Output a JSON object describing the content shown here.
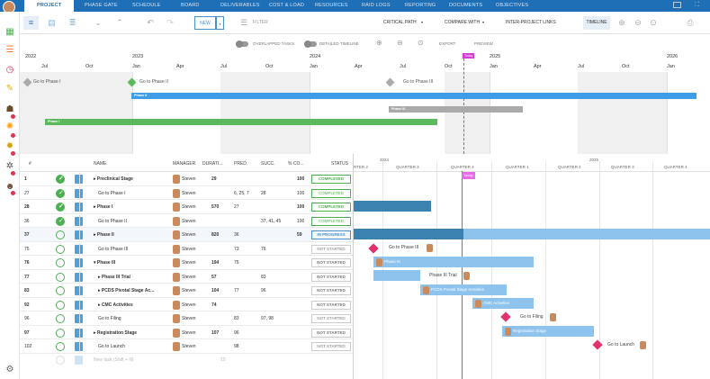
{
  "nav": {
    "tabs": [
      "PROJECT",
      "PHASE GATE",
      "SCHEDULE",
      "BOARD",
      "DELIVERABLES",
      "COST & LOAD",
      "RESOURCES",
      "RAID LOGS",
      "REPORTING",
      "DOCUMENTS",
      "OBJECTIVES"
    ],
    "active_tab": "PROJECT"
  },
  "toolbar": {
    "new_label": "NEW",
    "filter_label": "FILTER",
    "critical_path_label": "CRITICAL PATH",
    "compare_label": "COMPARE WITH",
    "inter_project_label": "INTER-PROJECT LINKS",
    "timeline_label": "TIMELINE"
  },
  "timeline_controls": {
    "overlapped": "OVERLAPPED TASKS",
    "detailed": "DETAILED TIMELINE",
    "export": "EXPORT",
    "preview": "PREVIEW"
  },
  "timeline": {
    "years": [
      "2022",
      "2023",
      "2024",
      "2025",
      "2026"
    ],
    "months": [
      "Jul",
      "Oct",
      "Jan",
      "Apr",
      "Jul",
      "Oct",
      "Jan",
      "Apr",
      "Jul",
      "Oct",
      "Jan",
      "Apr",
      "Jul",
      "Oct",
      "Jan"
    ],
    "today_label": "Today",
    "milestones": [
      "Go to Phase I",
      "Go to Phase II",
      "Go to Phase III"
    ],
    "bars": [
      "Phase II",
      "Phase III",
      "Phase I"
    ]
  },
  "table": {
    "headers": {
      "num": "#",
      "name": "NAME",
      "manager": "MANAGER",
      "duration": "DURATI...",
      "pred": "PRED.",
      "succ": "SUCC.",
      "complete": "% CO...",
      "status": "STATUS"
    },
    "rows": [
      {
        "num": "1",
        "name": "Preclinical Stage",
        "manager": "Steven",
        "duration": "29",
        "pred": "",
        "succ": "",
        "pct": "100",
        "status": "COMPLETED"
      },
      {
        "num": "27",
        "name": "Go to Phase I",
        "manager": "Steven",
        "duration": "",
        "pred": "6, 25, 7",
        "succ": "28",
        "pct": "100",
        "status": "COMPLETED"
      },
      {
        "num": "28",
        "name": "Phase I",
        "manager": "Steven",
        "duration": "570",
        "pred": "27",
        "succ": "",
        "pct": "100",
        "status": "COMPLETED"
      },
      {
        "num": "36",
        "name": "Go to Phase II",
        "manager": "Steven",
        "duration": "",
        "pred": "",
        "succ": "37, 41, 45",
        "pct": "100",
        "status": "COMPLETED"
      },
      {
        "num": "37",
        "name": "Phase II",
        "manager": "Steven",
        "duration": "820",
        "pred": "36",
        "succ": "",
        "pct": "59",
        "status": "IN PROGRESS"
      },
      {
        "num": "75",
        "name": "Go to Phase III",
        "manager": "Steven",
        "duration": "",
        "pred": "73",
        "succ": "76",
        "pct": "",
        "status": "NOT STARTED"
      },
      {
        "num": "76",
        "name": "Phase III",
        "manager": "Steven",
        "duration": "194",
        "pred": "75",
        "succ": "",
        "pct": "",
        "status": "NOT STARTED"
      },
      {
        "num": "77",
        "name": "Phase III Trial",
        "manager": "Steven",
        "duration": "57",
        "pred": "",
        "succ": "83",
        "pct": "",
        "status": "NOT STARTED"
      },
      {
        "num": "83",
        "name": "PCDS Pivotal Stage Ac...",
        "manager": "Steven",
        "duration": "104",
        "pred": "77",
        "succ": "96",
        "pct": "",
        "status": "NOT STARTED"
      },
      {
        "num": "92",
        "name": "CMC Activities",
        "manager": "Steven",
        "duration": "74",
        "pred": "",
        "succ": "",
        "pct": "",
        "status": "NOT STARTED"
      },
      {
        "num": "96",
        "name": "Go to Filing",
        "manager": "Steven",
        "duration": "",
        "pred": "83",
        "succ": "97, 98",
        "pct": "",
        "status": "NOT STARTED"
      },
      {
        "num": "97",
        "name": "Registration Stage",
        "manager": "Steven",
        "duration": "107",
        "pred": "96",
        "succ": "",
        "pct": "",
        "status": "NOT STARTED"
      },
      {
        "num": "102",
        "name": "Go to Launch",
        "manager": "Steven",
        "duration": "",
        "pred": "98",
        "succ": "",
        "pct": "",
        "status": "NOT STARTED"
      }
    ],
    "new_task": "New task (Shift + N)",
    "new_task_duration": "10"
  },
  "gantt": {
    "years": [
      "2024",
      "2025"
    ],
    "quarters": [
      "RTER 2",
      "QUARTER 3",
      "QUARTER 4",
      "QUARTER 1",
      "QUARTER 2",
      "QUARTER 3",
      "QUARTER 4"
    ],
    "today_label": "Today",
    "labels": [
      "Go to Phase III",
      "Phase III",
      "Phase III Trial",
      "PCDS Pivotal Stage Activities",
      "CMC Activities",
      "Go to Filing",
      "Registration Stage",
      "Go to Launch"
    ]
  }
}
